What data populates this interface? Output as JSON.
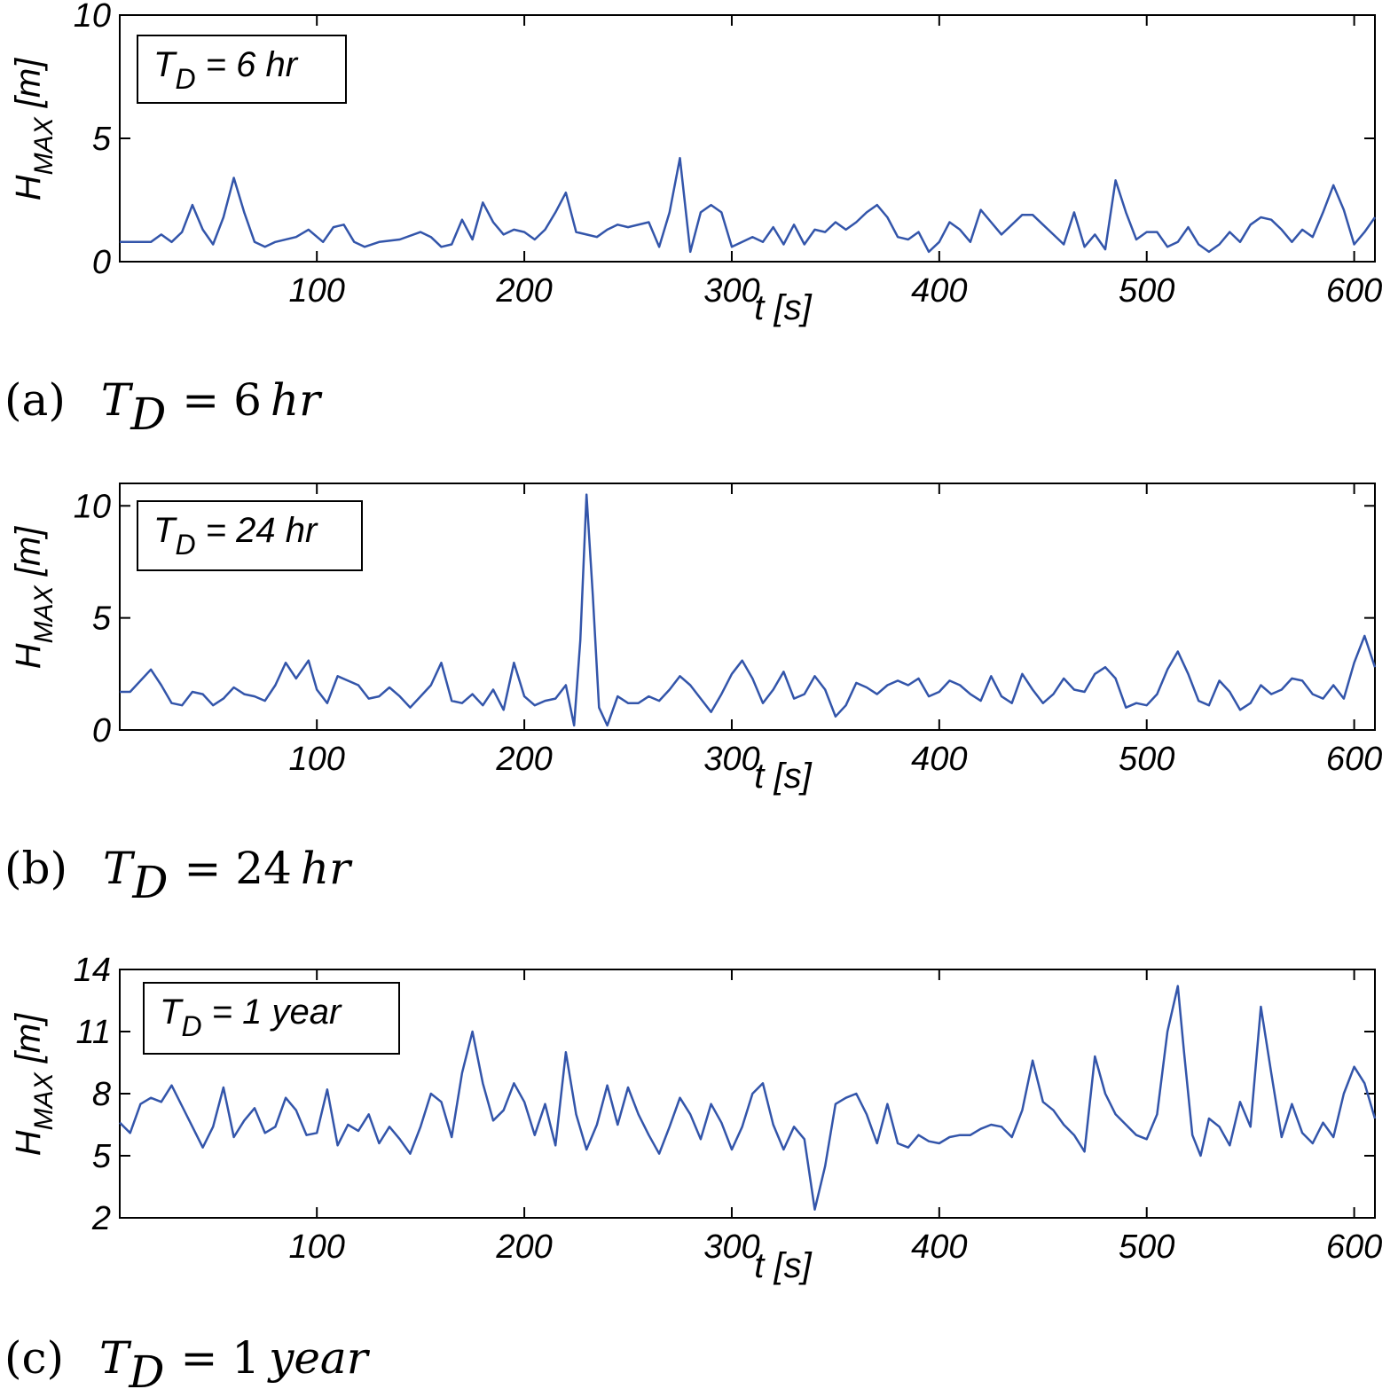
{
  "chart_data": [
    {
      "type": "line",
      "panel_label": "(a)",
      "caption_var": "T",
      "caption_sub": "D",
      "caption_rest": "= 6",
      "caption_unit": "hr",
      "legend_var": "T",
      "legend_sub": "D",
      "legend_rest": " = 6 hr",
      "ylabel_var": "H",
      "ylabel_sub": "MAX",
      "ylabel_unit": " [m]",
      "xlabel": "t [s]",
      "xlim": [
        5,
        610
      ],
      "ylim": [
        0,
        10
      ],
      "xticks": [
        100,
        200,
        300,
        400,
        500,
        600
      ],
      "yticks": [
        0,
        5,
        10
      ],
      "color": "#3355aa",
      "series": [
        {
          "name": "H_MAX",
          "x": [
            5,
            20,
            25,
            30,
            35,
            40,
            45,
            50,
            55,
            60,
            65,
            70,
            75,
            80,
            90,
            96,
            103,
            108,
            113,
            118,
            123,
            130,
            140,
            150,
            155,
            160,
            165,
            170,
            175,
            180,
            185,
            190,
            195,
            200,
            205,
            210,
            215,
            220,
            225,
            230,
            235,
            240,
            245,
            250,
            260,
            265,
            270,
            275,
            280,
            285,
            290,
            295,
            300,
            305,
            310,
            315,
            320,
            325,
            330,
            335,
            340,
            345,
            350,
            355,
            360,
            365,
            370,
            375,
            380,
            385,
            390,
            395,
            400,
            405,
            410,
            415,
            420,
            425,
            430,
            435,
            440,
            445,
            450,
            455,
            460,
            465,
            470,
            475,
            480,
            485,
            490,
            495,
            500,
            505,
            510,
            515,
            520,
            525,
            530,
            535,
            540,
            545,
            550,
            555,
            560,
            565,
            570,
            575,
            580,
            585,
            590,
            595,
            600,
            605,
            610
          ],
          "y": [
            0.8,
            0.8,
            1.1,
            0.8,
            1.2,
            2.3,
            1.3,
            0.7,
            1.8,
            3.4,
            2.0,
            0.8,
            0.6,
            0.8,
            1.0,
            1.3,
            0.8,
            1.4,
            1.5,
            0.8,
            0.6,
            0.8,
            0.9,
            1.2,
            1.0,
            0.6,
            0.7,
            1.7,
            0.9,
            2.4,
            1.6,
            1.1,
            1.3,
            1.2,
            0.9,
            1.3,
            2.0,
            2.8,
            1.2,
            1.1,
            1.0,
            1.3,
            1.5,
            1.4,
            1.6,
            0.6,
            2.0,
            4.2,
            0.4,
            2.0,
            2.3,
            2.0,
            0.6,
            0.8,
            1.0,
            0.8,
            1.4,
            0.7,
            1.5,
            0.7,
            1.3,
            1.2,
            1.6,
            1.3,
            1.6,
            2.0,
            2.3,
            1.8,
            1.0,
            0.9,
            1.2,
            0.4,
            0.8,
            1.6,
            1.3,
            0.8,
            2.1,
            1.6,
            1.1,
            1.5,
            1.9,
            1.9,
            1.5,
            1.1,
            0.7,
            2.0,
            0.6,
            1.1,
            0.5,
            3.3,
            2.0,
            0.9,
            1.2,
            1.2,
            0.6,
            0.8,
            1.4,
            0.7,
            0.4,
            0.7,
            1.2,
            0.8,
            1.5,
            1.8,
            1.7,
            1.3,
            0.8,
            1.3,
            1.0,
            2.0,
            3.1,
            2.1,
            0.7,
            1.2,
            1.8
          ]
        }
      ]
    },
    {
      "type": "line",
      "panel_label": "(b)",
      "caption_var": "T",
      "caption_sub": "D",
      "caption_rest": "= 24",
      "caption_unit": "hr",
      "legend_var": "T",
      "legend_sub": "D",
      "legend_rest": " = 24 hr",
      "ylabel_var": "H",
      "ylabel_sub": "MAX",
      "ylabel_unit": " [m]",
      "xlabel": "t [s]",
      "xlim": [
        5,
        610
      ],
      "ylim": [
        0,
        11
      ],
      "xticks": [
        100,
        200,
        300,
        400,
        500,
        600
      ],
      "yticks": [
        0,
        5,
        10
      ],
      "color": "#3355aa",
      "series": [
        {
          "name": "H_MAX",
          "x": [
            5,
            10,
            20,
            25,
            30,
            35,
            40,
            45,
            50,
            55,
            60,
            65,
            70,
            75,
            80,
            85,
            90,
            96,
            100,
            105,
            110,
            120,
            125,
            130,
            135,
            140,
            145,
            150,
            155,
            160,
            165,
            170,
            175,
            180,
            185,
            190,
            195,
            200,
            205,
            210,
            215,
            220,
            224,
            227,
            230,
            233,
            236,
            240,
            245,
            250,
            255,
            260,
            265,
            270,
            275,
            280,
            285,
            290,
            295,
            300,
            305,
            310,
            315,
            320,
            325,
            330,
            335,
            340,
            345,
            350,
            355,
            360,
            365,
            370,
            375,
            380,
            385,
            390,
            395,
            400,
            405,
            410,
            415,
            420,
            425,
            430,
            435,
            440,
            445,
            450,
            455,
            460,
            465,
            470,
            475,
            480,
            485,
            490,
            495,
            500,
            505,
            510,
            515,
            520,
            525,
            530,
            535,
            540,
            545,
            550,
            555,
            560,
            565,
            570,
            575,
            580,
            585,
            590,
            595,
            600,
            605,
            610
          ],
          "y": [
            1.7,
            1.7,
            2.7,
            2.0,
            1.2,
            1.1,
            1.7,
            1.6,
            1.1,
            1.4,
            1.9,
            1.6,
            1.5,
            1.3,
            2.0,
            3.0,
            2.3,
            3.1,
            1.8,
            1.2,
            2.4,
            2.0,
            1.4,
            1.5,
            1.9,
            1.5,
            1.0,
            1.5,
            2.0,
            3.0,
            1.3,
            1.2,
            1.6,
            1.1,
            1.8,
            0.9,
            3.0,
            1.5,
            1.1,
            1.3,
            1.4,
            2.0,
            0.2,
            4.0,
            10.5,
            6.0,
            1.0,
            0.2,
            1.5,
            1.2,
            1.2,
            1.5,
            1.3,
            1.8,
            2.4,
            2.0,
            1.4,
            0.8,
            1.6,
            2.5,
            3.1,
            2.3,
            1.2,
            1.8,
            2.6,
            1.4,
            1.6,
            2.4,
            1.8,
            0.6,
            1.1,
            2.1,
            1.9,
            1.6,
            2.0,
            2.2,
            2.0,
            2.3,
            1.5,
            1.7,
            2.2,
            2.0,
            1.6,
            1.3,
            2.4,
            1.5,
            1.2,
            2.5,
            1.8,
            1.2,
            1.6,
            2.3,
            1.8,
            1.7,
            2.5,
            2.8,
            2.3,
            1.0,
            1.2,
            1.1,
            1.6,
            2.7,
            3.5,
            2.5,
            1.3,
            1.1,
            2.2,
            1.7,
            0.9,
            1.2,
            2.0,
            1.6,
            1.8,
            2.3,
            2.2,
            1.6,
            1.4,
            2.0,
            1.4,
            3.0,
            4.2,
            2.8
          ]
        }
      ]
    },
    {
      "type": "line",
      "panel_label": "(c)",
      "caption_var": "T",
      "caption_sub": "D",
      "caption_rest": "= 1",
      "caption_unit": "year",
      "legend_var": "T",
      "legend_sub": "D",
      "legend_rest": " = 1 year",
      "ylabel_var": "H",
      "ylabel_sub": "MAX",
      "ylabel_unit": " [m]",
      "xlabel": "t [s]",
      "xlim": [
        5,
        610
      ],
      "ylim": [
        2,
        14
      ],
      "xticks": [
        100,
        200,
        300,
        400,
        500,
        600
      ],
      "yticks": [
        2,
        5,
        8,
        11,
        14
      ],
      "color": "#3355aa",
      "series": [
        {
          "name": "H_MAX",
          "x": [
            5,
            10,
            15,
            20,
            25,
            30,
            35,
            40,
            45,
            50,
            55,
            60,
            65,
            70,
            75,
            80,
            85,
            90,
            95,
            100,
            105,
            110,
            115,
            120,
            125,
            130,
            135,
            140,
            145,
            150,
            155,
            160,
            165,
            170,
            175,
            180,
            185,
            190,
            195,
            200,
            205,
            210,
            215,
            220,
            225,
            230,
            235,
            240,
            245,
            250,
            255,
            260,
            265,
            270,
            275,
            280,
            285,
            290,
            295,
            300,
            305,
            310,
            315,
            320,
            325,
            330,
            335,
            340,
            345,
            350,
            355,
            360,
            365,
            370,
            375,
            380,
            385,
            390,
            395,
            400,
            405,
            410,
            415,
            420,
            425,
            430,
            435,
            440,
            445,
            450,
            455,
            460,
            465,
            470,
            475,
            480,
            485,
            490,
            495,
            500,
            505,
            510,
            515,
            518,
            522,
            526,
            530,
            535,
            540,
            545,
            550,
            555,
            560,
            565,
            570,
            575,
            580,
            585,
            590,
            595,
            600,
            605,
            610
          ],
          "y": [
            6.6,
            6.1,
            7.5,
            7.8,
            7.6,
            8.4,
            7.4,
            6.4,
            5.4,
            6.4,
            8.3,
            5.9,
            6.7,
            7.3,
            6.1,
            6.4,
            7.8,
            7.2,
            6.0,
            6.1,
            8.2,
            5.5,
            6.5,
            6.2,
            7.0,
            5.6,
            6.4,
            5.8,
            5.1,
            6.4,
            8.0,
            7.6,
            5.9,
            9.0,
            11.0,
            8.5,
            6.7,
            7.2,
            8.5,
            7.6,
            6.0,
            7.5,
            5.5,
            10.0,
            7.0,
            5.3,
            6.5,
            8.4,
            6.5,
            8.3,
            7.0,
            6.0,
            5.1,
            6.4,
            7.8,
            7.0,
            5.8,
            7.5,
            6.6,
            5.3,
            6.4,
            8.0,
            8.5,
            6.5,
            5.3,
            6.4,
            5.8,
            2.4,
            4.5,
            7.5,
            7.8,
            8.0,
            7.0,
            5.6,
            7.5,
            5.6,
            5.4,
            6.0,
            5.7,
            5.6,
            5.9,
            6.0,
            6.0,
            6.3,
            6.5,
            6.4,
            5.9,
            7.2,
            9.6,
            7.6,
            7.2,
            6.5,
            6.0,
            5.2,
            9.8,
            8.0,
            7.0,
            6.5,
            6.0,
            5.8,
            7.0,
            11.0,
            13.2,
            10.0,
            6.0,
            5.0,
            6.8,
            6.4,
            5.5,
            7.6,
            6.4,
            12.2,
            9.0,
            5.9,
            7.5,
            6.1,
            5.6,
            6.6,
            5.9,
            8.0,
            9.3,
            8.5,
            6.8
          ]
        }
      ]
    }
  ]
}
